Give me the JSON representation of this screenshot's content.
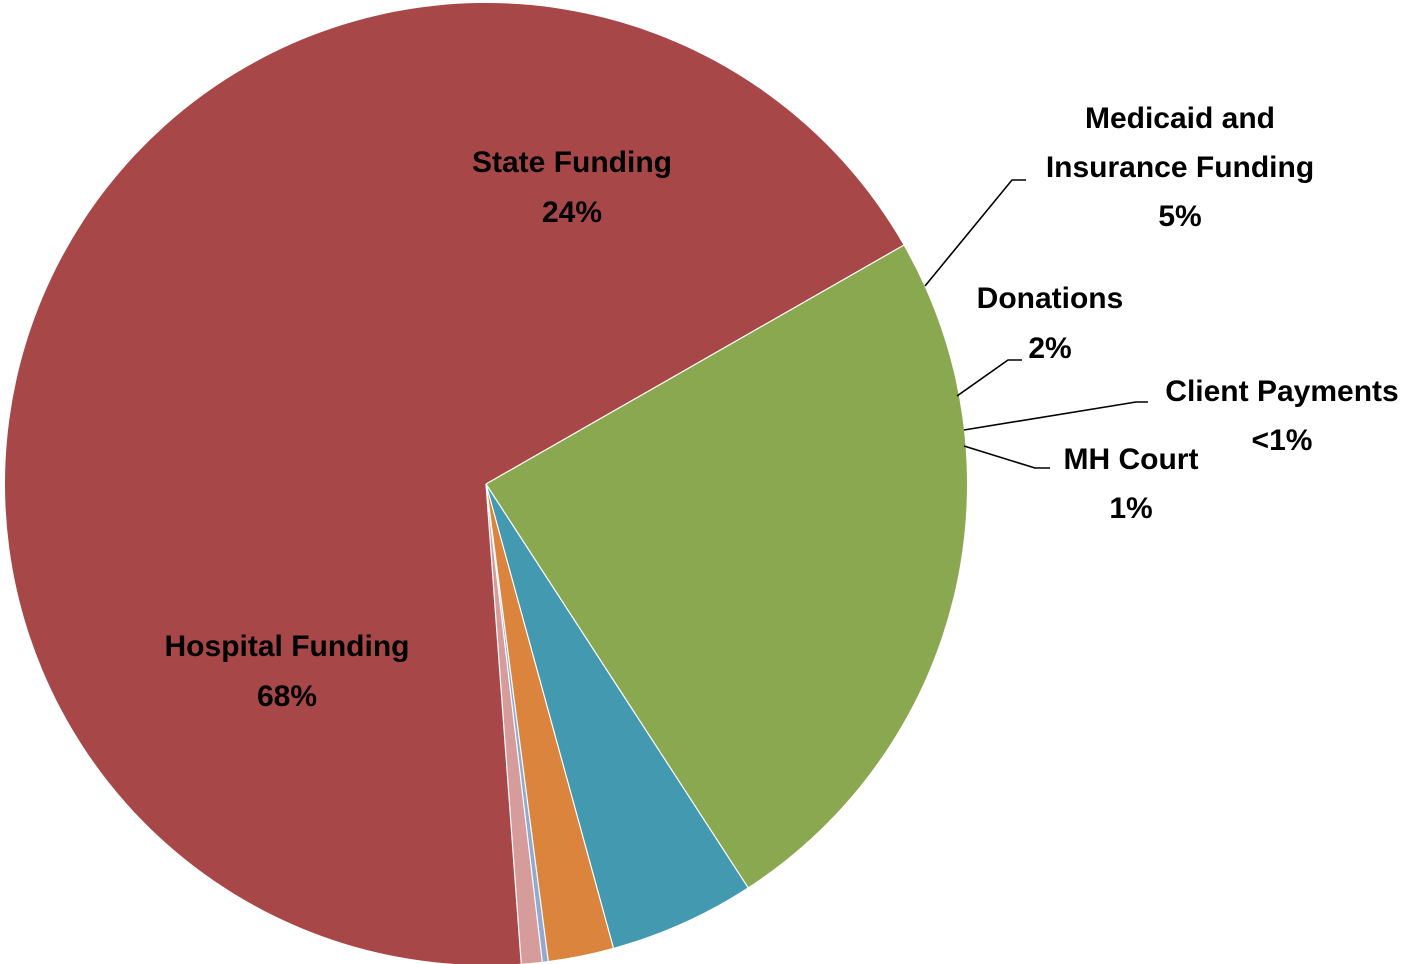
{
  "chart_data": {
    "type": "pie",
    "title": "",
    "slices": [
      {
        "name": "Hospital Funding",
        "label": "Hospital Funding",
        "value": 67.9,
        "display": "68%",
        "color": "#A84747"
      },
      {
        "name": "State Funding",
        "label": "State Funding",
        "value": 24.1,
        "display": "24%",
        "color": "#8AA84F"
      },
      {
        "name": "Medicaid and Insurance Funding",
        "label": "Medicaid and Insurance Funding",
        "value": 4.9,
        "display": "5%",
        "color": "#4299B0"
      },
      {
        "name": "Donations",
        "label": "Donations",
        "value": 2.2,
        "display": "2%",
        "color": "#DB843D"
      },
      {
        "name": "Client Payments",
        "label": "Client Payments",
        "value": 0.2,
        "display": "<1%",
        "color": "#93A9CF"
      },
      {
        "name": "MH Court",
        "label": "MH Court",
        "value": 0.7,
        "display": "1%",
        "color": "#D69B9B"
      }
    ]
  }
}
